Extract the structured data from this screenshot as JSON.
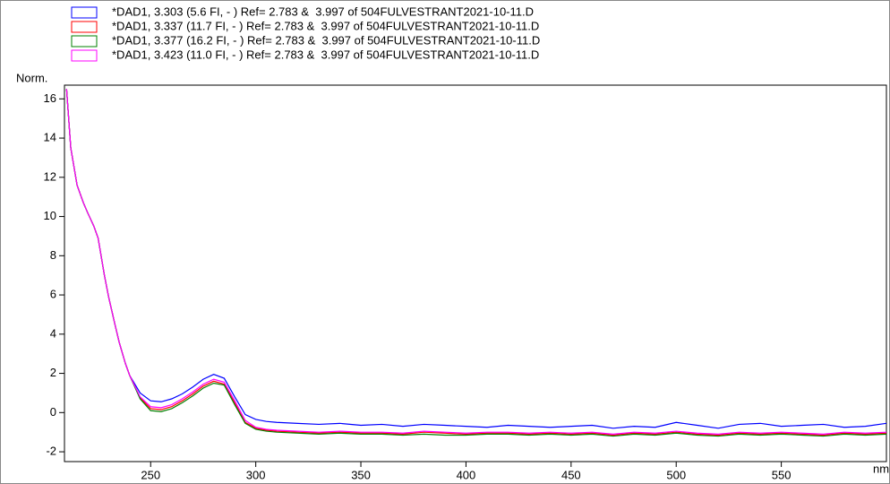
{
  "chart_data": {
    "type": "line",
    "x_label": "nm",
    "y_label": "Norm.",
    "x": [
      210,
      212,
      215,
      218,
      220,
      223,
      225,
      228,
      230,
      233,
      235,
      238,
      240,
      245,
      250,
      255,
      260,
      265,
      270,
      275,
      280,
      285,
      290,
      295,
      300,
      305,
      310,
      320,
      330,
      340,
      350,
      360,
      370,
      380,
      390,
      400,
      410,
      420,
      430,
      440,
      450,
      460,
      470,
      480,
      490,
      500,
      510,
      520,
      530,
      540,
      550,
      560,
      570,
      580,
      590,
      600
    ],
    "series": [
      {
        "name": "*DAD1, 3.303 (5.6 FI, - ) Ref= 2.783 &  3.997 of 504FULVESTRANT2021-10-11.D",
        "color": "#0000ff",
        "values": [
          16.5,
          13.5,
          11.6,
          10.7,
          10.2,
          9.5,
          8.9,
          7.0,
          5.9,
          4.5,
          3.6,
          2.5,
          1.9,
          1.0,
          0.6,
          0.55,
          0.7,
          0.95,
          1.3,
          1.7,
          1.95,
          1.75,
          0.8,
          -0.1,
          -0.35,
          -0.45,
          -0.5,
          -0.55,
          -0.6,
          -0.55,
          -0.65,
          -0.6,
          -0.7,
          -0.6,
          -0.65,
          -0.7,
          -0.75,
          -0.65,
          -0.7,
          -0.75,
          -0.7,
          -0.65,
          -0.8,
          -0.7,
          -0.75,
          -0.5,
          -0.65,
          -0.8,
          -0.6,
          -0.55,
          -0.7,
          -0.65,
          -0.6,
          -0.75,
          -0.7,
          -0.55
        ]
      },
      {
        "name": "*DAD1, 3.337 (11.7 FI, - ) Ref= 2.783 &  3.997 of 504FULVESTRANT2021-10-11.D",
        "color": "#ff0000",
        "values": [
          16.5,
          13.5,
          11.6,
          10.7,
          10.2,
          9.5,
          8.9,
          7.0,
          5.9,
          4.5,
          3.6,
          2.5,
          1.9,
          0.75,
          0.2,
          0.15,
          0.3,
          0.6,
          0.95,
          1.35,
          1.6,
          1.45,
          0.5,
          -0.5,
          -0.8,
          -0.9,
          -0.95,
          -1.0,
          -1.05,
          -1.0,
          -1.05,
          -1.05,
          -1.1,
          -1.0,
          -1.05,
          -1.1,
          -1.05,
          -1.05,
          -1.1,
          -1.05,
          -1.1,
          -1.05,
          -1.15,
          -1.05,
          -1.1,
          -1.0,
          -1.1,
          -1.15,
          -1.05,
          -1.1,
          -1.05,
          -1.1,
          -1.15,
          -1.05,
          -1.1,
          -1.05
        ]
      },
      {
        "name": "*DAD1, 3.377 (16.2 FI, - ) Ref= 2.783 &  3.997 of 504FULVESTRANT2021-10-11.D",
        "color": "#008000",
        "values": [
          16.5,
          13.5,
          11.6,
          10.7,
          10.2,
          9.5,
          8.9,
          7.0,
          5.9,
          4.5,
          3.6,
          2.5,
          1.9,
          0.7,
          0.1,
          0.05,
          0.2,
          0.5,
          0.85,
          1.25,
          1.5,
          1.4,
          0.4,
          -0.55,
          -0.85,
          -0.95,
          -1.0,
          -1.05,
          -1.1,
          -1.05,
          -1.1,
          -1.1,
          -1.15,
          -1.1,
          -1.15,
          -1.15,
          -1.1,
          -1.1,
          -1.15,
          -1.1,
          -1.15,
          -1.1,
          -1.2,
          -1.1,
          -1.15,
          -1.05,
          -1.15,
          -1.2,
          -1.1,
          -1.15,
          -1.1,
          -1.15,
          -1.2,
          -1.1,
          -1.15,
          -1.1
        ]
      },
      {
        "name": "*DAD1, 3.423 (11.0 FI, - ) Ref= 2.783 &  3.997 of 504FULVESTRANT2021-10-11.D",
        "color": "#ff00ff",
        "values": [
          16.5,
          13.5,
          11.6,
          10.7,
          10.2,
          9.5,
          8.9,
          7.0,
          5.9,
          4.5,
          3.6,
          2.5,
          1.9,
          0.8,
          0.3,
          0.25,
          0.4,
          0.7,
          1.05,
          1.45,
          1.7,
          1.55,
          0.6,
          -0.4,
          -0.75,
          -0.85,
          -0.9,
          -0.95,
          -1.0,
          -0.95,
          -1.0,
          -1.0,
          -1.05,
          -0.95,
          -1.0,
          -1.05,
          -1.0,
          -1.0,
          -1.05,
          -1.0,
          -1.05,
          -1.0,
          -1.1,
          -1.0,
          -1.05,
          -0.95,
          -1.05,
          -1.1,
          -1.0,
          -1.05,
          -1.0,
          -1.05,
          -1.1,
          -1.0,
          -1.05,
          -1.0
        ]
      }
    ],
    "xlim": [
      209,
      600
    ],
    "ylim": [
      -2.5,
      16.7
    ],
    "xticks": [
      250,
      300,
      350,
      400,
      450,
      500,
      550
    ],
    "yticks": [
      -2,
      0,
      2,
      4,
      6,
      8,
      10,
      12,
      14,
      16
    ]
  }
}
